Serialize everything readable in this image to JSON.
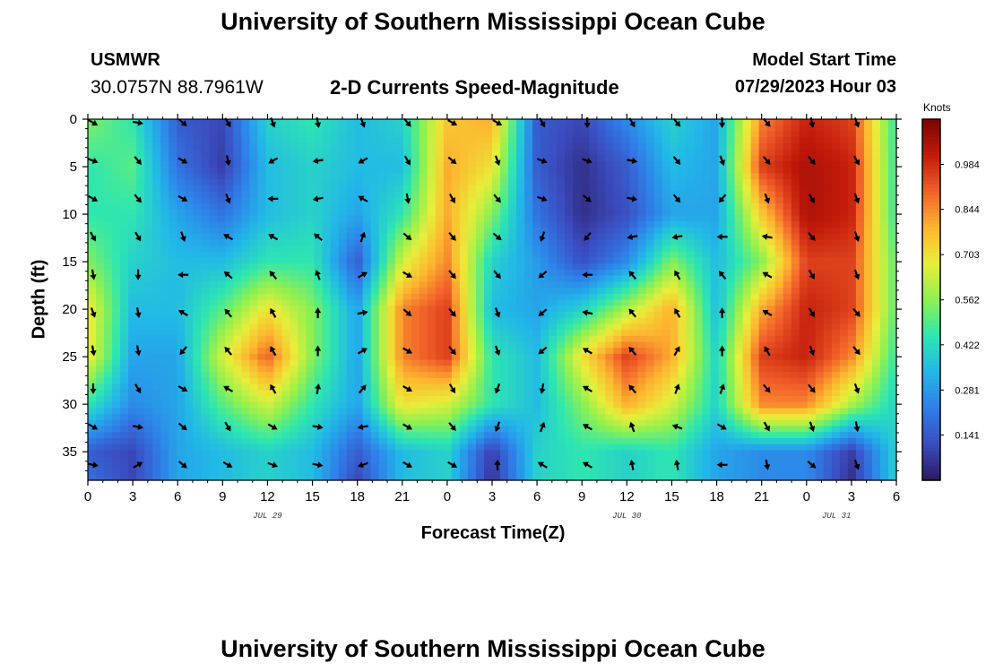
{
  "header": {
    "title": "University of Southern Mississippi Ocean Cube",
    "station": "USMWR",
    "coordinates": "30.0757N  88.7961W",
    "subtitle": "2-D Currents Speed-Magnitude",
    "model_start_label": "Model Start Time",
    "model_start_value": "07/29/2023 Hour 03"
  },
  "footer": {
    "title": "University of Southern Mississippi Ocean Cube"
  },
  "colors": {
    "palette": [
      "#2c1a5e",
      "#3b4cc0",
      "#2f7fe8",
      "#22b7e8",
      "#2ee6b0",
      "#8ff050",
      "#e8ee3a",
      "#fdb62f",
      "#f1602a",
      "#c21a0a",
      "#7a0403"
    ]
  },
  "chart_data": {
    "type": "heatmap",
    "title": "2-D Currents Speed-Magnitude",
    "xlabel": "Forecast Time(Z)",
    "ylabel": "Depth (ft)",
    "x_ticks": [
      "0",
      "3",
      "6",
      "9",
      "12",
      "15",
      "18",
      "21",
      "0",
      "3",
      "6",
      "9",
      "12",
      "15",
      "18",
      "21",
      "0",
      "3",
      "6"
    ],
    "x_range": [
      0,
      54
    ],
    "y_ticks": [
      0,
      5,
      10,
      15,
      20,
      25,
      30,
      35
    ],
    "y_range": [
      0,
      38
    ],
    "date_labels": [
      {
        "label": "JUL 29",
        "hour": 12
      },
      {
        "label": "JUL 30",
        "hour": 36
      },
      {
        "label": "JUL 31",
        "hour": 50
      }
    ],
    "colorbar": {
      "label": "Knots",
      "ticks": [
        0.984,
        0.844,
        0.703,
        0.562,
        0.422,
        0.281,
        0.141
      ],
      "range": [
        0.0,
        1.125
      ]
    },
    "field_hours": [
      0,
      3,
      6,
      9,
      12,
      15,
      18,
      21,
      24,
      27,
      30,
      33,
      36,
      39,
      42,
      45,
      48,
      51,
      54
    ],
    "field_depths": [
      0,
      5,
      10,
      15,
      20,
      25,
      30,
      35,
      38
    ],
    "speed_knots": [
      [
        0.55,
        0.45,
        0.15,
        0.1,
        0.4,
        0.45,
        0.35,
        0.4,
        0.75,
        0.8,
        0.15,
        0.1,
        0.25,
        0.4,
        0.3,
        0.85,
        1.0,
        0.95,
        0.45
      ],
      [
        0.45,
        0.5,
        0.2,
        0.08,
        0.35,
        0.4,
        0.35,
        0.35,
        0.8,
        0.7,
        0.15,
        0.05,
        0.15,
        0.35,
        0.3,
        0.95,
        1.05,
        1.0,
        0.45
      ],
      [
        0.45,
        0.45,
        0.3,
        0.2,
        0.35,
        0.4,
        0.3,
        0.45,
        0.8,
        0.55,
        0.2,
        0.05,
        0.12,
        0.3,
        0.3,
        0.75,
        1.05,
        1.0,
        0.45
      ],
      [
        0.55,
        0.4,
        0.35,
        0.35,
        0.45,
        0.45,
        0.15,
        0.65,
        0.85,
        0.4,
        0.28,
        0.12,
        0.25,
        0.55,
        0.35,
        0.55,
        0.95,
        0.95,
        0.5
      ],
      [
        0.7,
        0.35,
        0.35,
        0.5,
        0.7,
        0.55,
        0.3,
        0.85,
        0.95,
        0.35,
        0.3,
        0.4,
        0.6,
        0.8,
        0.35,
        0.8,
        1.0,
        0.95,
        0.5
      ],
      [
        0.7,
        0.3,
        0.3,
        0.65,
        0.9,
        0.55,
        0.3,
        0.85,
        0.95,
        0.45,
        0.35,
        0.7,
        0.95,
        0.8,
        0.4,
        0.95,
        1.0,
        0.85,
        0.45
      ],
      [
        0.45,
        0.25,
        0.3,
        0.5,
        0.65,
        0.45,
        0.3,
        0.7,
        0.65,
        0.45,
        0.35,
        0.55,
        0.8,
        0.65,
        0.4,
        0.85,
        0.85,
        0.6,
        0.4
      ],
      [
        0.15,
        0.1,
        0.3,
        0.35,
        0.4,
        0.35,
        0.15,
        0.35,
        0.4,
        0.08,
        0.4,
        0.45,
        0.4,
        0.45,
        0.3,
        0.25,
        0.25,
        0.08,
        0.4
      ],
      [
        0.2,
        0.1,
        0.3,
        0.35,
        0.4,
        0.35,
        0.1,
        0.35,
        0.4,
        0.05,
        0.4,
        0.45,
        0.4,
        0.45,
        0.3,
        0.25,
        0.25,
        0.05,
        0.4
      ]
    ],
    "arrow_depths": [
      0,
      4,
      8,
      12,
      16,
      20,
      24,
      28,
      32,
      36
    ],
    "arrow_hours": [
      0,
      3,
      6,
      9,
      12,
      15,
      18,
      21,
      24,
      27,
      30,
      33,
      36,
      39,
      42,
      45,
      48,
      51
    ],
    "arrow_directions_deg": [
      [
        120,
        100,
        130,
        150,
        160,
        170,
        160,
        140,
        120,
        120,
        150,
        180,
        150,
        140,
        180,
        140,
        170,
        160
      ],
      [
        110,
        140,
        120,
        170,
        240,
        260,
        240,
        150,
        130,
        160,
        110,
        110,
        100,
        140,
        160,
        140,
        140,
        150
      ],
      [
        120,
        140,
        120,
        160,
        270,
        260,
        300,
        170,
        150,
        140,
        110,
        130,
        100,
        140,
        220,
        160,
        150,
        160
      ],
      [
        150,
        150,
        160,
        300,
        300,
        310,
        20,
        130,
        140,
        130,
        200,
        220,
        260,
        260,
        270,
        280,
        140,
        160
      ],
      [
        170,
        180,
        270,
        310,
        320,
        340,
        60,
        120,
        140,
        140,
        230,
        270,
        320,
        330,
        320,
        300,
        150,
        160
      ],
      [
        160,
        170,
        300,
        320,
        330,
        0,
        80,
        130,
        140,
        160,
        230,
        280,
        320,
        330,
        0,
        300,
        150,
        140
      ],
      [
        170,
        170,
        220,
        320,
        330,
        0,
        60,
        120,
        140,
        160,
        230,
        300,
        320,
        30,
        0,
        330,
        160,
        140
      ],
      [
        180,
        150,
        120,
        300,
        330,
        10,
        40,
        120,
        150,
        200,
        190,
        300,
        320,
        20,
        20,
        140,
        140,
        160
      ],
      [
        120,
        100,
        130,
        150,
        120,
        100,
        260,
        120,
        140,
        200,
        20,
        300,
        340,
        290,
        120,
        150,
        160,
        170
      ],
      [
        100,
        60,
        130,
        120,
        110,
        100,
        250,
        120,
        120,
        0,
        300,
        300,
        350,
        350,
        270,
        170,
        130,
        160
      ]
    ]
  }
}
